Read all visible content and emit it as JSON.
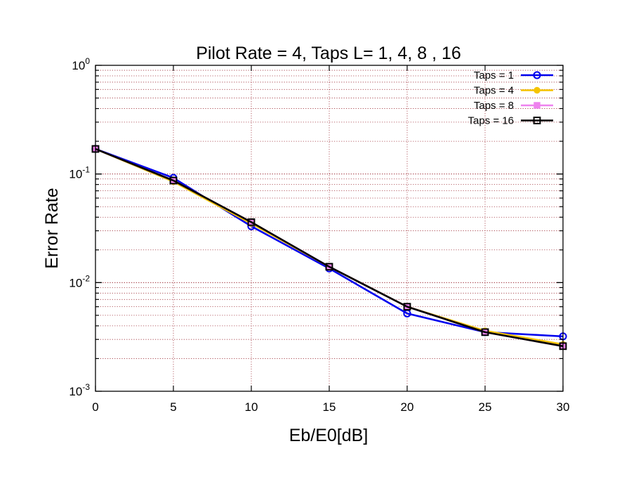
{
  "chart_data": {
    "type": "line",
    "title": "Pilot Rate = 4, Taps L= 1, 4, 8 , 16",
    "xlabel": "Eb/E0[dB]",
    "ylabel": "Error Rate",
    "xlim": [
      0,
      30
    ],
    "ylim": [
      0.001,
      1
    ],
    "yscale": "log",
    "grid": true,
    "legend_position": "top-right",
    "x_ticks": [
      "0",
      "5",
      "10",
      "15",
      "20",
      "25",
      "30"
    ],
    "y_ticks": [
      {
        "base": "10",
        "exp": "0"
      },
      {
        "base": "10",
        "exp": "-1"
      },
      {
        "base": "10",
        "exp": "-2"
      },
      {
        "base": "10",
        "exp": "-3"
      }
    ],
    "x": [
      0,
      5,
      10,
      15,
      20,
      25,
      30
    ],
    "series": [
      {
        "name": "Taps = 1",
        "color": "#0000ee",
        "marker": "open-circle",
        "values": [
          0.17,
          0.092,
          0.033,
          0.0135,
          0.0052,
          0.0035,
          0.0032
        ]
      },
      {
        "name": "Taps = 4",
        "color": "#f5c400",
        "marker": "filled-circle",
        "values": [
          0.17,
          0.085,
          0.035,
          0.014,
          0.006,
          0.0036,
          0.0027
        ]
      },
      {
        "name": "Taps = 8",
        "color": "#ee82ee",
        "marker": "filled-square",
        "values": [
          0.17,
          0.087,
          0.036,
          0.014,
          0.006,
          0.0035,
          0.0026
        ]
      },
      {
        "name": "Taps = 16",
        "color": "#000000",
        "marker": "open-square",
        "values": [
          0.17,
          0.087,
          0.036,
          0.014,
          0.006,
          0.0035,
          0.0026
        ]
      }
    ]
  }
}
